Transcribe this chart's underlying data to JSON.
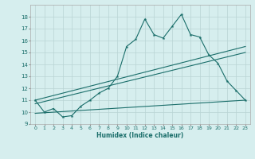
{
  "background_color": "#d6eeee",
  "grid_color": "#b8d4d4",
  "line_color": "#1a6e6a",
  "xlim": [
    -0.5,
    23.5
  ],
  "ylim": [
    9,
    19
  ],
  "xlabel": "Humidex (Indice chaleur)",
  "yticks": [
    9,
    10,
    11,
    12,
    13,
    14,
    15,
    16,
    17,
    18
  ],
  "xtick_labels": [
    "0",
    "1",
    "2",
    "3",
    "4",
    "5",
    "6",
    "7",
    "8",
    "9",
    "10",
    "11",
    "12",
    "13",
    "14",
    "15",
    "16",
    "17",
    "18",
    "19",
    "20",
    "21",
    "22",
    "23"
  ],
  "series1_x": [
    0,
    1,
    2,
    3,
    4,
    5,
    6,
    7,
    8,
    9,
    10,
    11,
    12,
    13,
    14,
    15,
    16,
    17,
    18,
    19,
    20,
    21,
    22,
    23
  ],
  "series1_y": [
    11.0,
    10.0,
    10.3,
    9.6,
    9.7,
    10.5,
    11.0,
    11.6,
    12.0,
    13.0,
    15.5,
    16.1,
    17.8,
    16.5,
    16.2,
    17.2,
    18.2,
    16.5,
    16.3,
    14.8,
    14.1,
    12.6,
    11.8,
    11.0
  ],
  "series2_x": [
    0,
    23
  ],
  "series2_y": [
    10.7,
    15.0
  ],
  "series3_x": [
    0,
    23
  ],
  "series3_y": [
    11.0,
    15.5
  ],
  "series4_x": [
    0,
    23
  ],
  "series4_y": [
    9.9,
    11.0
  ]
}
